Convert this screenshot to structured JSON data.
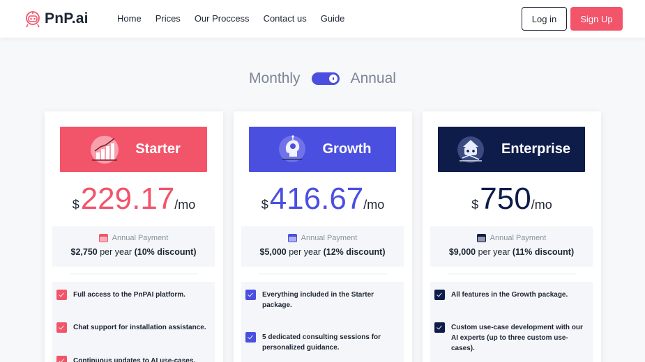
{
  "brand": {
    "name": "PnP.ai",
    "accent": "#f2546a"
  },
  "nav": {
    "items": [
      "Home",
      "Prices",
      "Our Proccess",
      "Contact us",
      "Guide"
    ]
  },
  "auth": {
    "login_label": "Log in",
    "signup_label": "Sign Up"
  },
  "billing": {
    "monthly_label": "Monthly",
    "annual_label": "Annual",
    "annual_selected": true
  },
  "plans": [
    {
      "name": "Starter",
      "color": "#f2546a",
      "icon": "growth-chart-icon",
      "currency": "$",
      "amount": "229.17",
      "period": "/mo",
      "annual_label": "Annual Payment",
      "yearly_amount": "$2,750",
      "per_year": "per year",
      "discount": "(10% discount)",
      "features": [
        "Full access to the PnPAI platform.",
        "Chat support for installation assistance.",
        "Continuous updates to AI use-cases."
      ]
    },
    {
      "name": "Growth",
      "color": "#4b4fe0",
      "icon": "ai-head-icon",
      "currency": "$",
      "amount": "416.67",
      "period": "/mo",
      "annual_label": "Annual Payment",
      "yearly_amount": "$5,000",
      "per_year": "per year",
      "discount": "(12% discount)",
      "features": [
        "Everything included in the Starter package.",
        "5 dedicated consulting sessions for personalized guidance."
      ]
    },
    {
      "name": "Enterprise",
      "color": "#0e1c4a",
      "icon": "enterprise-robot-icon",
      "currency": "$",
      "amount": "750",
      "period": "/mo",
      "annual_label": "Annual Payment",
      "yearly_amount": "$9,000",
      "per_year": "per year",
      "discount": "(11% discount)",
      "features": [
        "All features in the Growth package.",
        "Custom use-case development with our AI experts (up to three custom use-cases)."
      ]
    }
  ]
}
